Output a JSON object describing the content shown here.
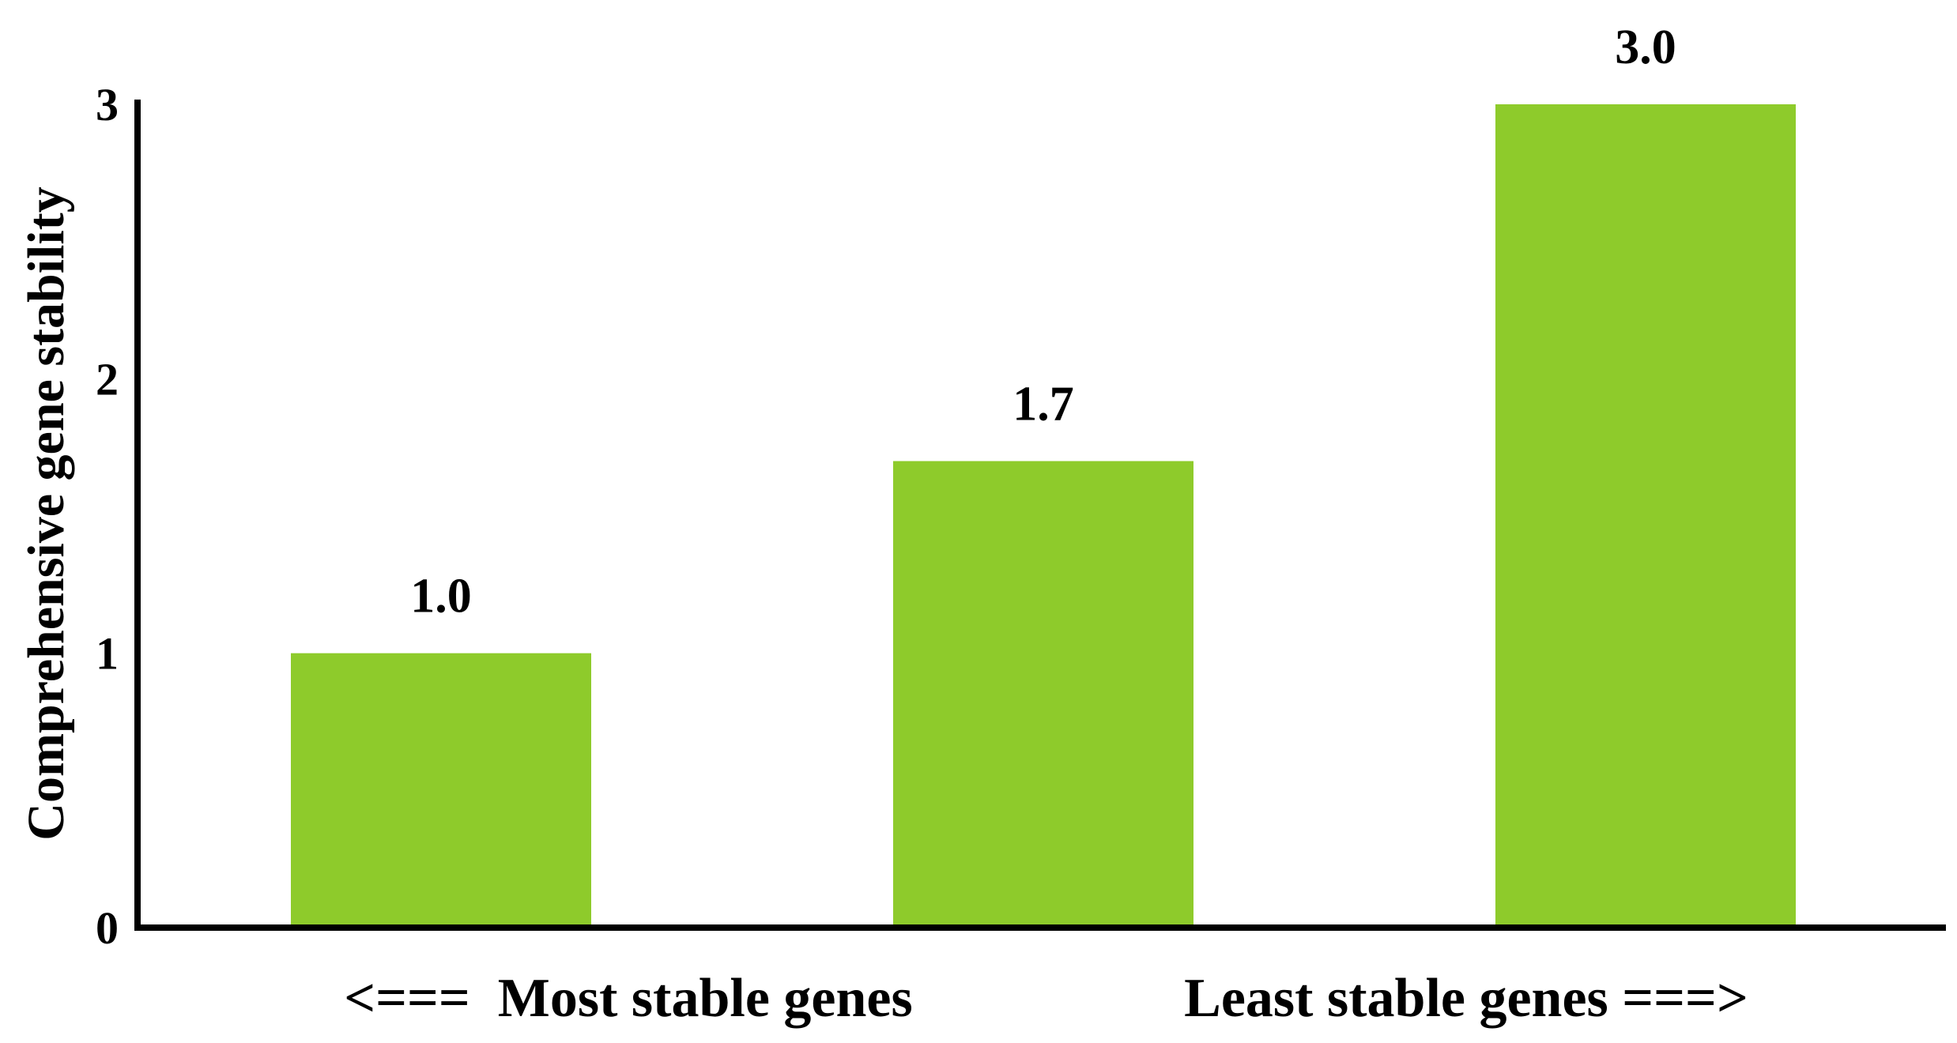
{
  "chart_data": {
    "type": "bar",
    "categories": [
      "",
      "",
      ""
    ],
    "values": [
      1.0,
      1.7,
      3.0
    ],
    "value_labels": [
      "1.0",
      "1.7",
      "3.0"
    ],
    "title": "",
    "xlabel": "",
    "ylabel": "Comprehensive gene stability",
    "ylim": [
      0,
      3
    ],
    "yticks": [
      0,
      1,
      2,
      3
    ],
    "ytick_labels": [
      "0",
      "1",
      "2",
      "3"
    ],
    "grid": false,
    "legend": "none",
    "bar_color": "#8ecb2b",
    "x_captions": {
      "left": "<===  Most stable genes",
      "right": "Least stable genes ===>"
    }
  }
}
